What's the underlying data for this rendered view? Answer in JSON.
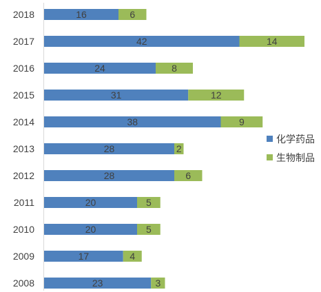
{
  "chart_data": {
    "type": "bar",
    "orientation": "horizontal",
    "stacked": true,
    "categories": [
      "2018",
      "2017",
      "2016",
      "2015",
      "2014",
      "2013",
      "2012",
      "2011",
      "2010",
      "2009",
      "2008"
    ],
    "series": [
      {
        "name": "化学药品",
        "color": "#4f81bd",
        "values": [
          16,
          42,
          24,
          31,
          38,
          28,
          28,
          20,
          20,
          17,
          23
        ]
      },
      {
        "name": "生物制品",
        "color": "#9bbb59",
        "values": [
          6,
          14,
          8,
          12,
          9,
          2,
          6,
          5,
          5,
          4,
          3
        ]
      }
    ],
    "xlim": [
      0,
      60
    ],
    "grid": false,
    "data_labels": true,
    "legend_position": "right"
  }
}
